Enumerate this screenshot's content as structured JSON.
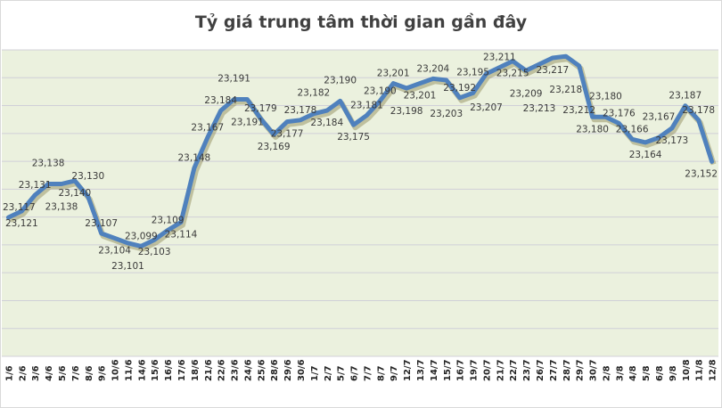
{
  "chart_data": {
    "type": "line",
    "title": "Tỷ giá trung tâm thời gian gần đây",
    "xlabel": "",
    "ylabel": "",
    "ylim": [
      23030,
      23222
    ],
    "grid": true,
    "legend": "none",
    "colors": {
      "line": "#4f81bd",
      "plot_bg": "#ebf1de",
      "grid": "#d0d0d8"
    },
    "categories": [
      "1/6",
      "2/6",
      "3/6",
      "4/6",
      "5/6",
      "7/6",
      "8/6",
      "9/6",
      "10/6",
      "11/6",
      "14/6",
      "15/6",
      "16/6",
      "17/6",
      "18/6",
      "21/6",
      "22/6",
      "23/6",
      "24/6",
      "25/6",
      "28/6",
      "29/6",
      "30/6",
      "1/7",
      "2/7",
      "5/7",
      "6/7",
      "7/7",
      "8/7",
      "9/7",
      "12/7",
      "13/7",
      "14/7",
      "15/7",
      "16/7",
      "19/7",
      "20/7",
      "21/7",
      "22/7",
      "23/7",
      "26/7",
      "27/7",
      "28/7",
      "29/7",
      "30/7",
      "2/8",
      "3/8",
      "4/8",
      "5/8",
      "6/8",
      "9/8",
      "10/8",
      "11/8",
      "12/8"
    ],
    "values": [
      23117,
      23121,
      23131,
      23138,
      23138,
      23140,
      23130,
      23107,
      23104,
      23101,
      23099,
      23103,
      23109,
      23114,
      23148,
      23167,
      23184,
      23191,
      23191,
      23179,
      23169,
      23177,
      23178,
      23182,
      23184,
      23190,
      23175,
      23181,
      23190,
      23201,
      23198,
      23201,
      23204,
      23203,
      23192,
      23195,
      23207,
      23211,
      23215,
      23209,
      23213,
      23217,
      23218,
      23212,
      23180,
      23180,
      23176,
      23166,
      23164,
      23167,
      23173,
      23187,
      23178,
      23152
    ]
  }
}
